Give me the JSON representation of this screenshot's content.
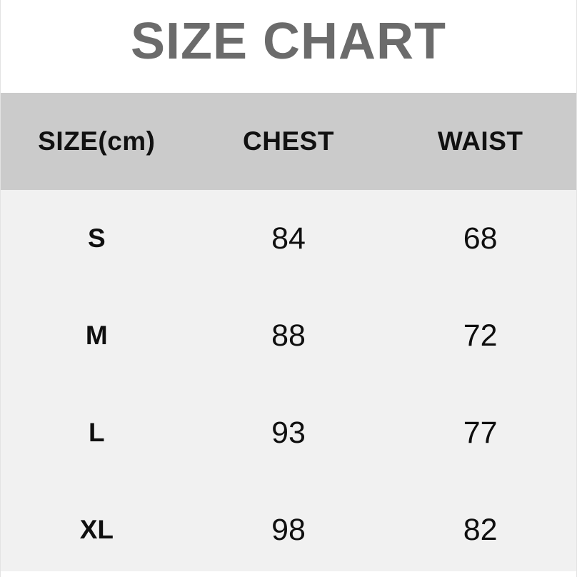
{
  "chart_data": {
    "type": "table",
    "title": "SIZE CHART",
    "unit": "cm",
    "columns": [
      "SIZE(cm)",
      "CHEST",
      "WAIST"
    ],
    "rows": [
      {
        "size": "S",
        "chest": "84",
        "waist": "68"
      },
      {
        "size": "M",
        "chest": "88",
        "waist": "72"
      },
      {
        "size": "L",
        "chest": "93",
        "waist": "77"
      },
      {
        "size": "XL",
        "chest": "98",
        "waist": "82"
      }
    ]
  },
  "colors": {
    "title_text": "#6b6b6b",
    "header_background": "#cbcbcb",
    "body_background": "#f1f1f1",
    "cell_text": "#0f0f0f",
    "page_background": "#ffffff"
  }
}
